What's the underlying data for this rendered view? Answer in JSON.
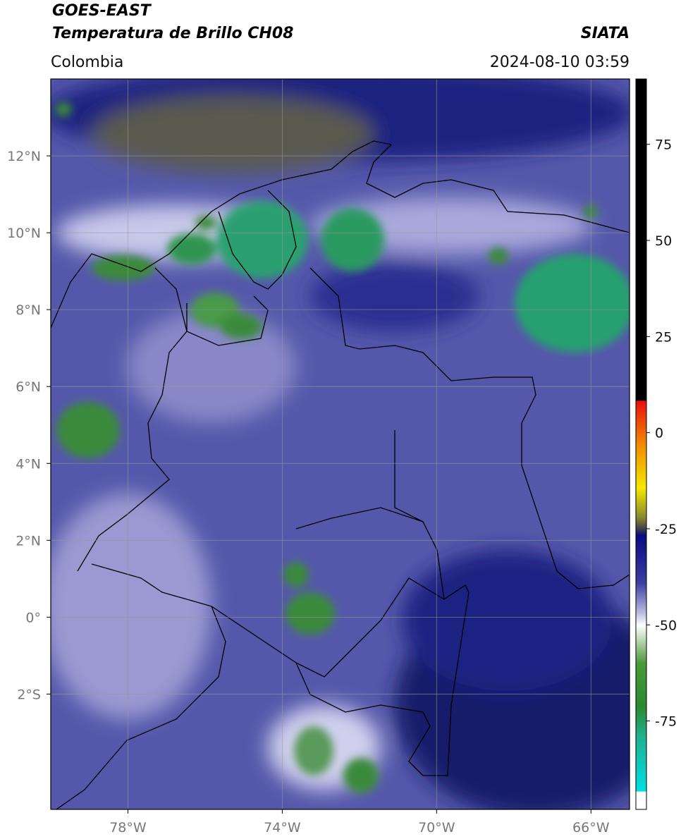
{
  "header": {
    "title": "GOES-EAST",
    "subtitle": "Temperatura de Brillo CH08",
    "source": "SIATA",
    "region": "Colombia",
    "datetime": "2024-08-10 03:59"
  },
  "map": {
    "xlim": [
      -80,
      -65
    ],
    "ylim": [
      -5,
      14
    ],
    "grid": true,
    "xticks": [
      {
        "value": -78,
        "label": "78°W"
      },
      {
        "value": -74,
        "label": "74°W"
      },
      {
        "value": -70,
        "label": "70°W"
      },
      {
        "value": -66,
        "label": "66°W"
      }
    ],
    "yticks": [
      {
        "value": 12,
        "label": "12°N"
      },
      {
        "value": 10,
        "label": "10°N"
      },
      {
        "value": 8,
        "label": "8°N"
      },
      {
        "value": 6,
        "label": "6°N"
      },
      {
        "value": 4,
        "label": "4°N"
      },
      {
        "value": 2,
        "label": "2°N"
      },
      {
        "value": 0,
        "label": "0°"
      },
      {
        "value": -2,
        "label": "2°S"
      }
    ]
  },
  "colorbar": {
    "lim": [
      -98,
      92
    ],
    "ticks": [
      75,
      50,
      25,
      0,
      -25,
      -50,
      -75
    ]
  }
}
